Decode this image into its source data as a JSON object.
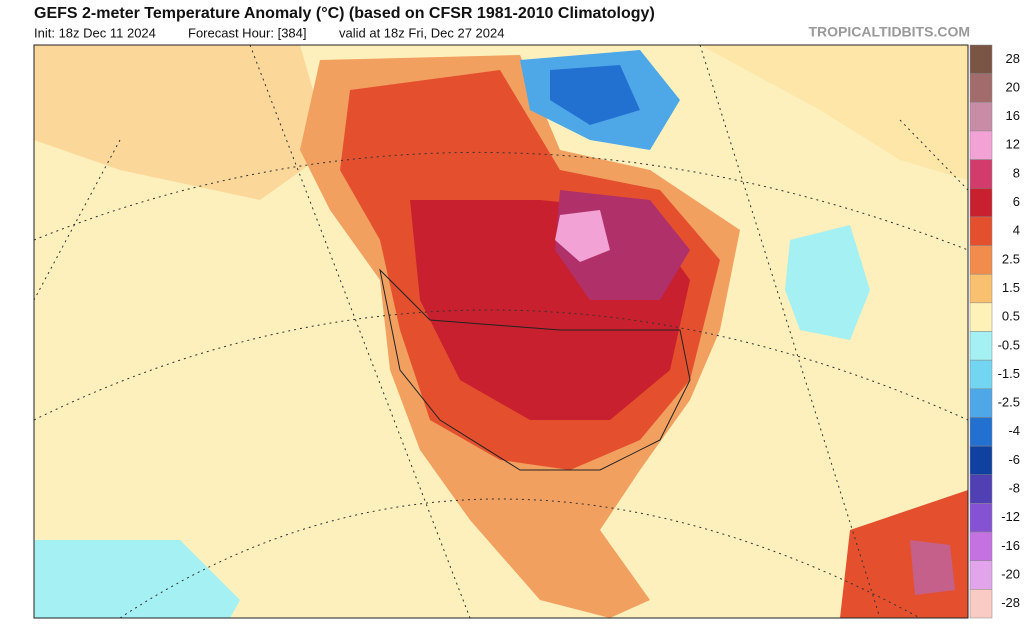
{
  "header": {
    "title": "GEFS 2-meter Temperature Anomaly (°C) (based on CFSR 1981-2010 Climatology)",
    "init": "Init: 18z Dec 11 2024",
    "forecast_hour": "Forecast Hour: [384]",
    "valid": "valid at 18z Fri, Dec 27 2024",
    "source": "TROPICALTIDBITS.COM"
  },
  "colorbar": {
    "levels": [
      28,
      20,
      16,
      12,
      8,
      6,
      4,
      2.5,
      1.5,
      0.5,
      -0.5,
      -1.5,
      -2.5,
      -4,
      -6,
      -8,
      -12,
      -16,
      -20,
      -28
    ],
    "colors": [
      "#7a5444",
      "#a36c6c",
      "#c98ca6",
      "#f2a2d4",
      "#d23c6c",
      "#c8202e",
      "#e4502e",
      "#f28c4c",
      "#f9c070",
      "#fff2b8",
      "#a4f0f2",
      "#72d6f2",
      "#4ea8e8",
      "#2270d0",
      "#1040a0",
      "#5040b4",
      "#8452d2",
      "#c472e2",
      "#e2a4ea",
      "#f8ccc4"
    ]
  }
}
